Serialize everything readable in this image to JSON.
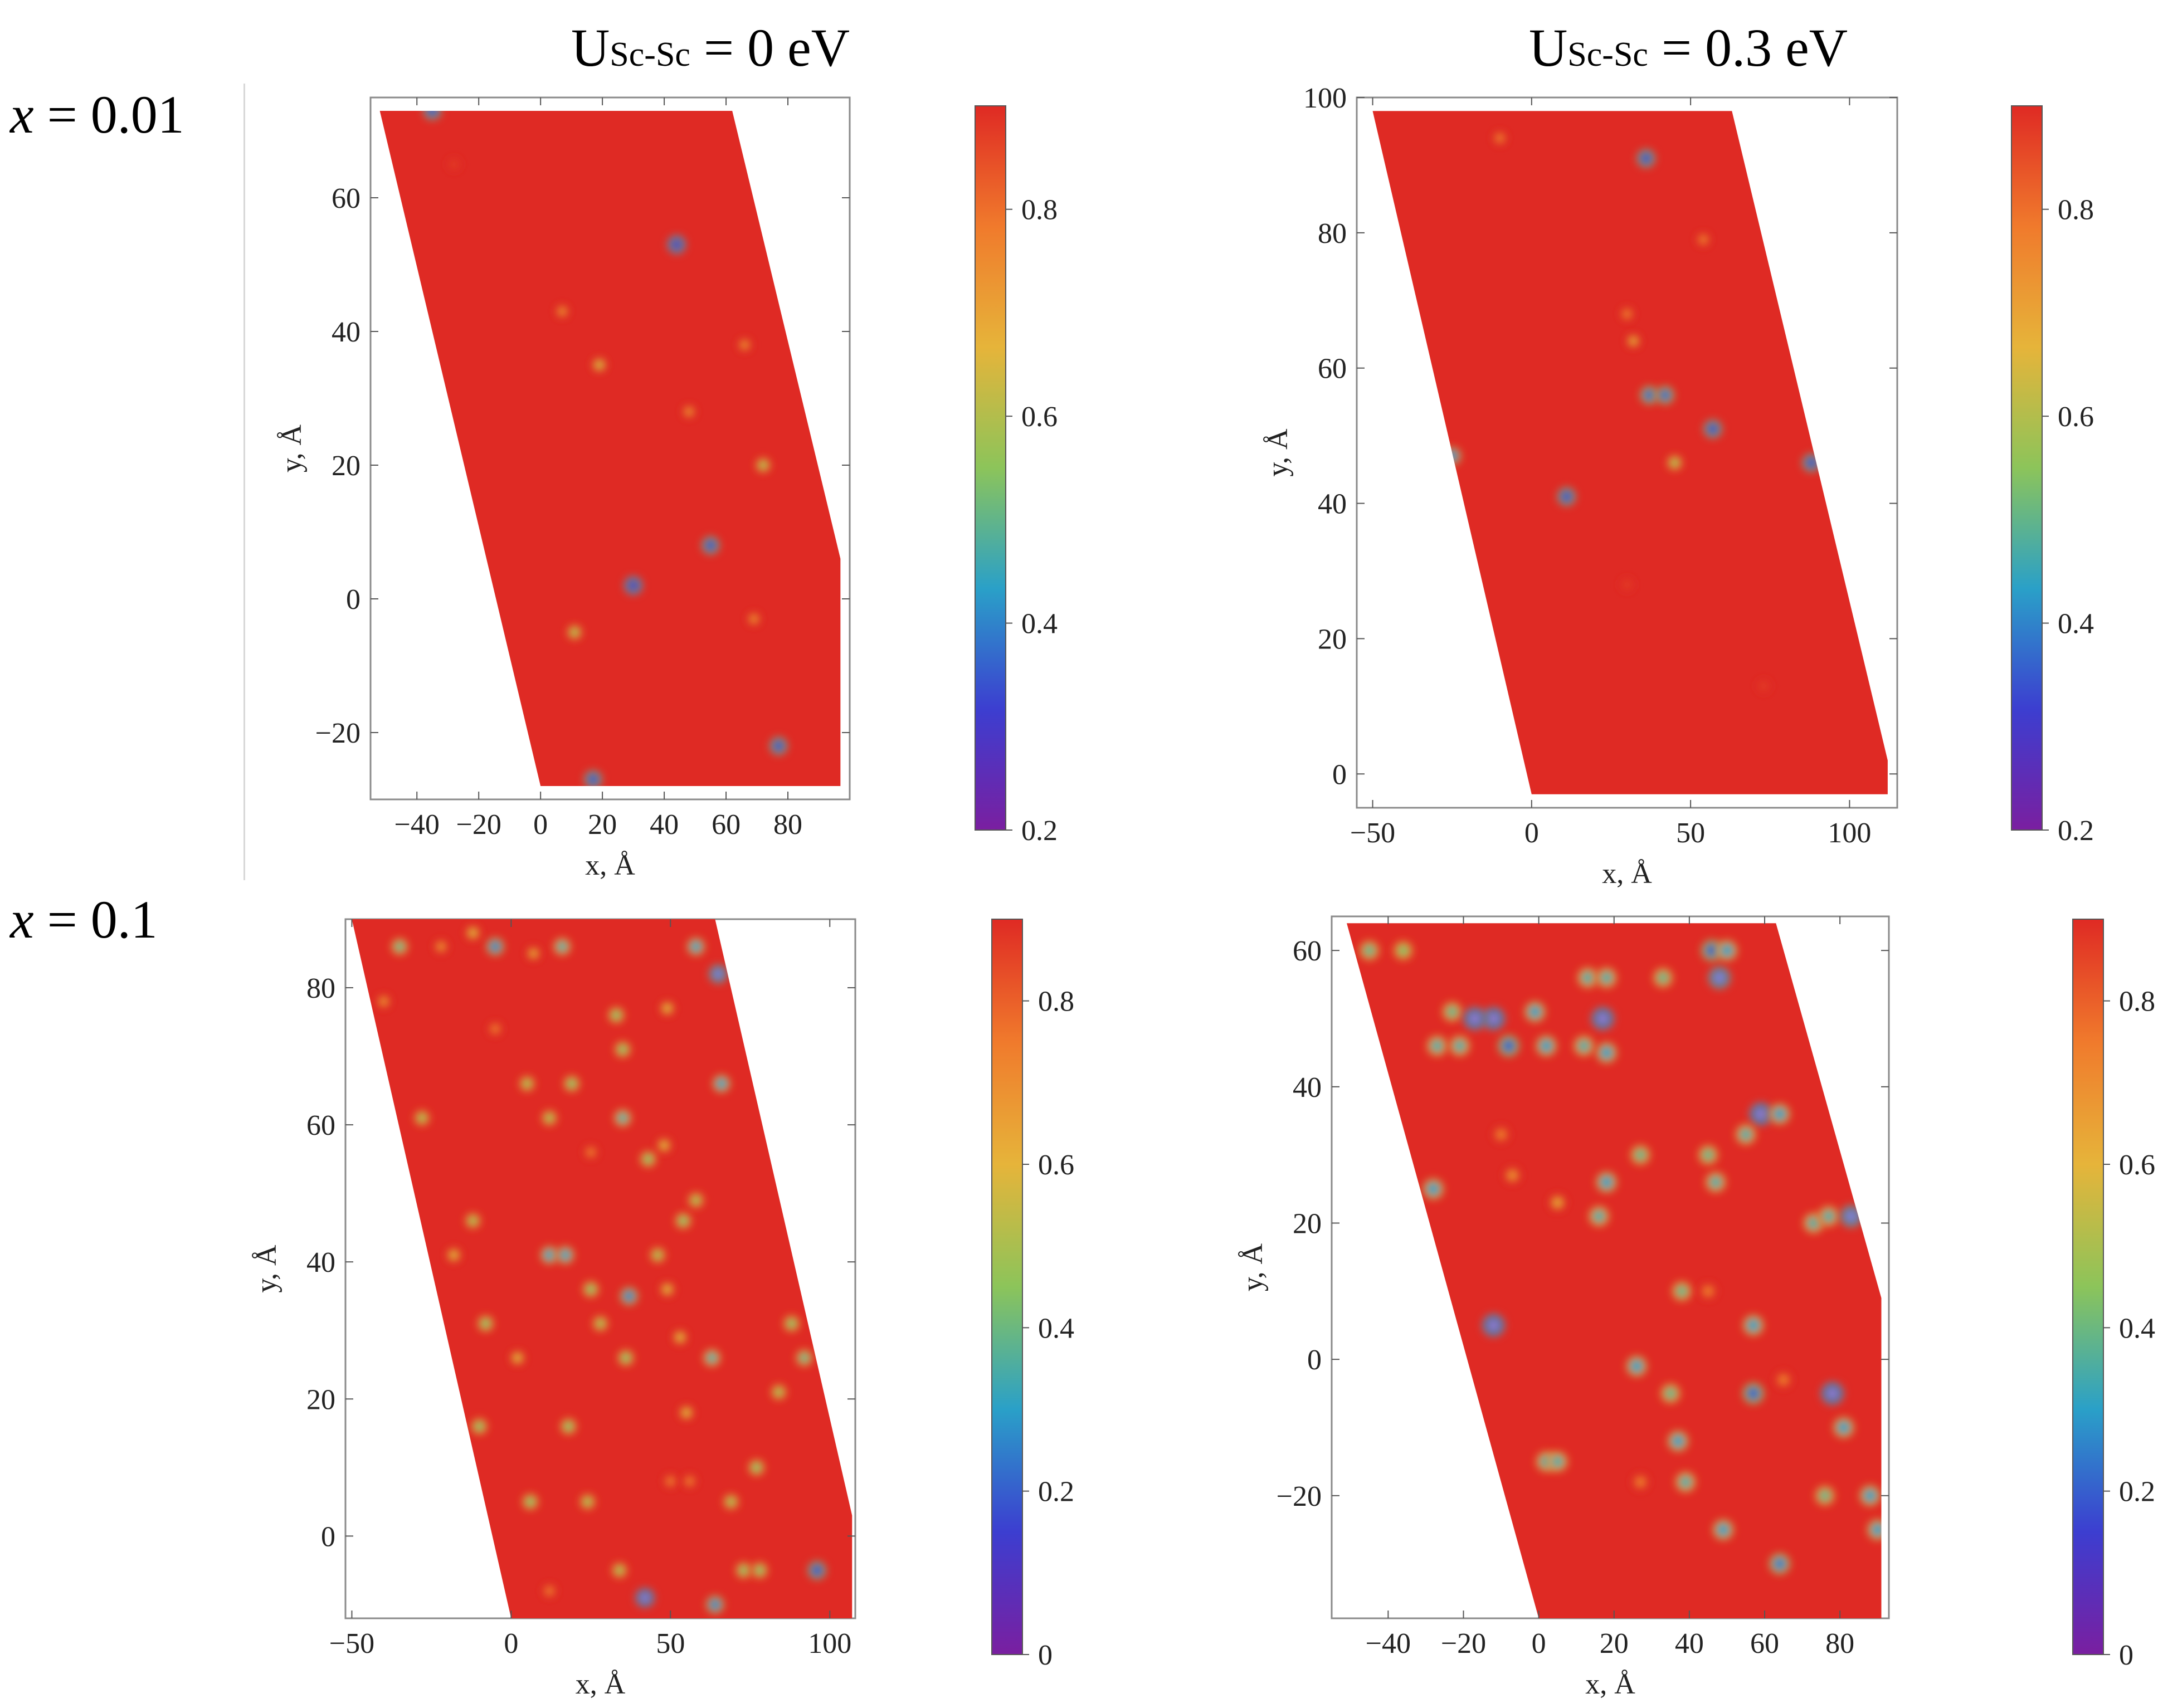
{
  "column_titles": [
    {
      "main": "U",
      "sub": "Sc-Sc",
      "rest": " = 0 eV"
    },
    {
      "main": "U",
      "sub": "Sc-Sc",
      "rest": " = 0.3 eV"
    }
  ],
  "row_labels": [
    {
      "var": "x",
      "rest": " = 0.01"
    },
    {
      "var": "x",
      "rest": " = 0.1"
    }
  ],
  "colors": {
    "background_red": "#df2a24",
    "frame": "#8a8a8a",
    "colormap": [
      "#7a1fa0",
      "#3c3ed0",
      "#2aa0c8",
      "#8cc45a",
      "#e6b43a",
      "#f07a2c",
      "#df2a24"
    ]
  },
  "chart_data": [
    {
      "type": "heatmap",
      "title": "USc-Sc = 0 eV, x = 0.01",
      "xlabel": "x, Å",
      "ylabel": "y, Å",
      "xlim": [
        -55,
        100
      ],
      "ylim": [
        -30,
        75
      ],
      "xticks": [
        -40,
        -20,
        0,
        20,
        40,
        60,
        80
      ],
      "yticks": [
        -20,
        0,
        20,
        40,
        60
      ],
      "region": [
        [
          0,
          -28
        ],
        [
          97,
          -28
        ],
        [
          97,
          6
        ],
        [
          62,
          73
        ],
        [
          -52,
          73
        ]
      ],
      "colorbar": {
        "min": 0.2,
        "max": 0.9,
        "ticks": [
          0.2,
          0.4,
          0.6,
          0.8
        ]
      },
      "points": [
        {
          "x": -35,
          "y": 73,
          "v": 0.3
        },
        {
          "x": 44,
          "y": 53,
          "v": 0.25
        },
        {
          "x": 7,
          "y": 43,
          "v": 0.75
        },
        {
          "x": 19,
          "y": 35,
          "v": 0.65
        },
        {
          "x": 66,
          "y": 38,
          "v": 0.75
        },
        {
          "x": 48,
          "y": 28,
          "v": 0.75
        },
        {
          "x": 72,
          "y": 20,
          "v": 0.6
        },
        {
          "x": 55,
          "y": 8,
          "v": 0.3
        },
        {
          "x": 30,
          "y": 2,
          "v": 0.25
        },
        {
          "x": 11,
          "y": -5,
          "v": 0.6
        },
        {
          "x": 69,
          "y": -3,
          "v": 0.75
        },
        {
          "x": 77,
          "y": -22,
          "v": 0.3
        },
        {
          "x": 17,
          "y": -27,
          "v": 0.3
        },
        {
          "x": -28,
          "y": 65,
          "v": 0.88
        }
      ]
    },
    {
      "type": "heatmap",
      "title": "USc-Sc = 0.3 eV, x = 0.01",
      "xlabel": "x, Å",
      "ylabel": "y, Å",
      "xlim": [
        -55,
        115
      ],
      "ylim": [
        -5,
        100
      ],
      "xticks": [
        -50,
        0,
        50,
        100
      ],
      "yticks": [
        0,
        20,
        40,
        60,
        80,
        100
      ],
      "region": [
        [
          0,
          -3
        ],
        [
          112,
          -3
        ],
        [
          112,
          2
        ],
        [
          63,
          98
        ],
        [
          -50,
          98
        ]
      ],
      "colorbar": {
        "min": 0.2,
        "max": 0.9,
        "ticks": [
          0.2,
          0.4,
          0.6,
          0.8
        ]
      },
      "points": [
        {
          "x": -10,
          "y": 94,
          "v": 0.78
        },
        {
          "x": 36,
          "y": 91,
          "v": 0.3
        },
        {
          "x": 54,
          "y": 79,
          "v": 0.78
        },
        {
          "x": 30,
          "y": 68,
          "v": 0.78
        },
        {
          "x": 32,
          "y": 64,
          "v": 0.7
        },
        {
          "x": 37,
          "y": 56,
          "v": 0.35
        },
        {
          "x": 42,
          "y": 56,
          "v": 0.35
        },
        {
          "x": 57,
          "y": 51,
          "v": 0.3
        },
        {
          "x": -25,
          "y": 47,
          "v": 0.4
        },
        {
          "x": 45,
          "y": 46,
          "v": 0.6
        },
        {
          "x": 88,
          "y": 46,
          "v": 0.3
        },
        {
          "x": 11,
          "y": 41,
          "v": 0.3
        },
        {
          "x": 30,
          "y": 28,
          "v": 0.88
        },
        {
          "x": 73,
          "y": 13,
          "v": 0.88
        }
      ]
    },
    {
      "type": "heatmap",
      "title": "USc-Sc = 0 eV, x = 0.1",
      "xlabel": "x, Å",
      "ylabel": "y, Å",
      "xlim": [
        -52,
        108
      ],
      "ylim": [
        -12,
        90
      ],
      "xticks": [
        -50,
        0,
        50,
        100
      ],
      "yticks": [
        0,
        20,
        40,
        60,
        80
      ],
      "region": [
        [
          0,
          -12
        ],
        [
          107,
          -12
        ],
        [
          107,
          3
        ],
        [
          64,
          90
        ],
        [
          -50,
          90
        ]
      ],
      "colorbar": {
        "min": 0.0,
        "max": 0.9,
        "ticks": [
          0,
          0.2,
          0.4,
          0.6,
          0.8
        ]
      },
      "points": [
        {
          "x": -35,
          "y": 86,
          "v": 0.4
        },
        {
          "x": -22,
          "y": 86,
          "v": 0.7
        },
        {
          "x": -12,
          "y": 88,
          "v": 0.6
        },
        {
          "x": -5,
          "y": 86,
          "v": 0.25
        },
        {
          "x": 7,
          "y": 85,
          "v": 0.65
        },
        {
          "x": 16,
          "y": 86,
          "v": 0.35
        },
        {
          "x": 58,
          "y": 86,
          "v": 0.3
        },
        {
          "x": 65,
          "y": 82,
          "v": 0.1
        },
        {
          "x": -40,
          "y": 78,
          "v": 0.7
        },
        {
          "x": -5,
          "y": 74,
          "v": 0.75
        },
        {
          "x": 33,
          "y": 76,
          "v": 0.45
        },
        {
          "x": 49,
          "y": 77,
          "v": 0.6
        },
        {
          "x": 35,
          "y": 71,
          "v": 0.45
        },
        {
          "x": 5,
          "y": 66,
          "v": 0.5
        },
        {
          "x": 19,
          "y": 66,
          "v": 0.45
        },
        {
          "x": 66,
          "y": 66,
          "v": 0.3
        },
        {
          "x": -28,
          "y": 61,
          "v": 0.5
        },
        {
          "x": 12,
          "y": 61,
          "v": 0.5
        },
        {
          "x": 35,
          "y": 61,
          "v": 0.35
        },
        {
          "x": 48,
          "y": 57,
          "v": 0.6
        },
        {
          "x": 25,
          "y": 56,
          "v": 0.75
        },
        {
          "x": 43,
          "y": 55,
          "v": 0.45
        },
        {
          "x": -12,
          "y": 46,
          "v": 0.5
        },
        {
          "x": 54,
          "y": 46,
          "v": 0.45
        },
        {
          "x": 58,
          "y": 49,
          "v": 0.5
        },
        {
          "x": -18,
          "y": 41,
          "v": 0.6
        },
        {
          "x": 12,
          "y": 41,
          "v": 0.3
        },
        {
          "x": 17,
          "y": 41,
          "v": 0.3
        },
        {
          "x": 46,
          "y": 41,
          "v": 0.5
        },
        {
          "x": 25,
          "y": 36,
          "v": 0.45
        },
        {
          "x": 37,
          "y": 35,
          "v": 0.25
        },
        {
          "x": 49,
          "y": 36,
          "v": 0.6
        },
        {
          "x": -8,
          "y": 31,
          "v": 0.45
        },
        {
          "x": 28,
          "y": 31,
          "v": 0.5
        },
        {
          "x": 53,
          "y": 29,
          "v": 0.6
        },
        {
          "x": 63,
          "y": 26,
          "v": 0.35
        },
        {
          "x": 88,
          "y": 31,
          "v": 0.45
        },
        {
          "x": 36,
          "y": 26,
          "v": 0.45
        },
        {
          "x": 2,
          "y": 26,
          "v": 0.6
        },
        {
          "x": 92,
          "y": 26,
          "v": 0.4
        },
        {
          "x": 55,
          "y": 18,
          "v": 0.6
        },
        {
          "x": 84,
          "y": 21,
          "v": 0.5
        },
        {
          "x": -10,
          "y": 16,
          "v": 0.45
        },
        {
          "x": 18,
          "y": 16,
          "v": 0.45
        },
        {
          "x": 77,
          "y": 10,
          "v": 0.45
        },
        {
          "x": 6,
          "y": 5,
          "v": 0.45
        },
        {
          "x": 24,
          "y": 5,
          "v": 0.5
        },
        {
          "x": 69,
          "y": 5,
          "v": 0.5
        },
        {
          "x": 96,
          "y": -5,
          "v": 0.15
        },
        {
          "x": 34,
          "y": -5,
          "v": 0.5
        },
        {
          "x": 73,
          "y": -5,
          "v": 0.45
        },
        {
          "x": 78,
          "y": -5,
          "v": 0.45
        },
        {
          "x": 42,
          "y": -9,
          "v": 0.05
        },
        {
          "x": 64,
          "y": -10,
          "v": 0.25
        },
        {
          "x": 12,
          "y": -8,
          "v": 0.75
        },
        {
          "x": 50,
          "y": 8,
          "v": 0.75
        },
        {
          "x": 56,
          "y": 8,
          "v": 0.75
        }
      ]
    },
    {
      "type": "heatmap",
      "title": "USc-Sc = 0.3 eV, x = 0.1",
      "xlabel": "x, Å",
      "ylabel": "y, Å",
      "xlim": [
        -55,
        93
      ],
      "ylim": [
        -38,
        65
      ],
      "xticks": [
        -40,
        -20,
        0,
        20,
        40,
        60,
        80
      ],
      "yticks": [
        -20,
        0,
        20,
        40,
        60
      ],
      "region": [
        [
          0,
          -38
        ],
        [
          91,
          -38
        ],
        [
          91,
          9
        ],
        [
          63,
          64
        ],
        [
          -51,
          64
        ]
      ],
      "colorbar": {
        "min": 0.0,
        "max": 0.9,
        "ticks": [
          0,
          0.2,
          0.4,
          0.6,
          0.8
        ]
      },
      "points": [
        {
          "x": -45,
          "y": 60,
          "v": 0.4
        },
        {
          "x": -36,
          "y": 60,
          "v": 0.45
        },
        {
          "x": 46,
          "y": 60,
          "v": 0.2
        },
        {
          "x": 50,
          "y": 60,
          "v": 0.3
        },
        {
          "x": 33,
          "y": 56,
          "v": 0.4
        },
        {
          "x": 13,
          "y": 56,
          "v": 0.35
        },
        {
          "x": 18,
          "y": 56,
          "v": 0.35
        },
        {
          "x": 48,
          "y": 56,
          "v": 0.1
        },
        {
          "x": -23,
          "y": 51,
          "v": 0.4
        },
        {
          "x": -12,
          "y": 50,
          "v": 0.05
        },
        {
          "x": -17,
          "y": 50,
          "v": 0.05
        },
        {
          "x": -1,
          "y": 51,
          "v": 0.3
        },
        {
          "x": 17,
          "y": 50,
          "v": 0.05
        },
        {
          "x": -27,
          "y": 46,
          "v": 0.35
        },
        {
          "x": -21,
          "y": 46,
          "v": 0.35
        },
        {
          "x": -8,
          "y": 46,
          "v": 0.2
        },
        {
          "x": 2,
          "y": 46,
          "v": 0.3
        },
        {
          "x": 18,
          "y": 45,
          "v": 0.3
        },
        {
          "x": 12,
          "y": 46,
          "v": 0.35
        },
        {
          "x": 59,
          "y": 36,
          "v": 0.05
        },
        {
          "x": 64,
          "y": 36,
          "v": 0.3
        },
        {
          "x": 55,
          "y": 33,
          "v": 0.35
        },
        {
          "x": 45,
          "y": 30,
          "v": 0.4
        },
        {
          "x": 27,
          "y": 30,
          "v": 0.4
        },
        {
          "x": -10,
          "y": 33,
          "v": 0.75
        },
        {
          "x": -28,
          "y": 25,
          "v": 0.3
        },
        {
          "x": 18,
          "y": 26,
          "v": 0.3
        },
        {
          "x": 47,
          "y": 26,
          "v": 0.35
        },
        {
          "x": 73,
          "y": 20,
          "v": 0.35
        },
        {
          "x": 77,
          "y": 21,
          "v": 0.35
        },
        {
          "x": 83,
          "y": 21,
          "v": 0.1
        },
        {
          "x": 16,
          "y": 21,
          "v": 0.35
        },
        {
          "x": 5,
          "y": 23,
          "v": 0.65
        },
        {
          "x": -7,
          "y": 27,
          "v": 0.7
        },
        {
          "x": 38,
          "y": 10,
          "v": 0.4
        },
        {
          "x": 57,
          "y": 5,
          "v": 0.3
        },
        {
          "x": -12,
          "y": 5,
          "v": 0.05
        },
        {
          "x": 26,
          "y": -1,
          "v": 0.3
        },
        {
          "x": 45,
          "y": 10,
          "v": 0.75
        },
        {
          "x": 35,
          "y": -5,
          "v": 0.4
        },
        {
          "x": 57,
          "y": -5,
          "v": 0.2
        },
        {
          "x": 78,
          "y": -5,
          "v": 0.05
        },
        {
          "x": 37,
          "y": -12,
          "v": 0.3
        },
        {
          "x": 39,
          "y": -18,
          "v": 0.35
        },
        {
          "x": 81,
          "y": -10,
          "v": 0.3
        },
        {
          "x": 2,
          "y": -15,
          "v": 0.35
        },
        {
          "x": 5,
          "y": -15,
          "v": 0.35
        },
        {
          "x": 27,
          "y": -18,
          "v": 0.75
        },
        {
          "x": 76,
          "y": -20,
          "v": 0.4
        },
        {
          "x": 88,
          "y": -20,
          "v": 0.3
        },
        {
          "x": 49,
          "y": -25,
          "v": 0.3
        },
        {
          "x": 64,
          "y": -30,
          "v": 0.25
        },
        {
          "x": 90,
          "y": -25,
          "v": 0.3
        },
        {
          "x": 65,
          "y": -3,
          "v": 0.75
        }
      ]
    }
  ]
}
